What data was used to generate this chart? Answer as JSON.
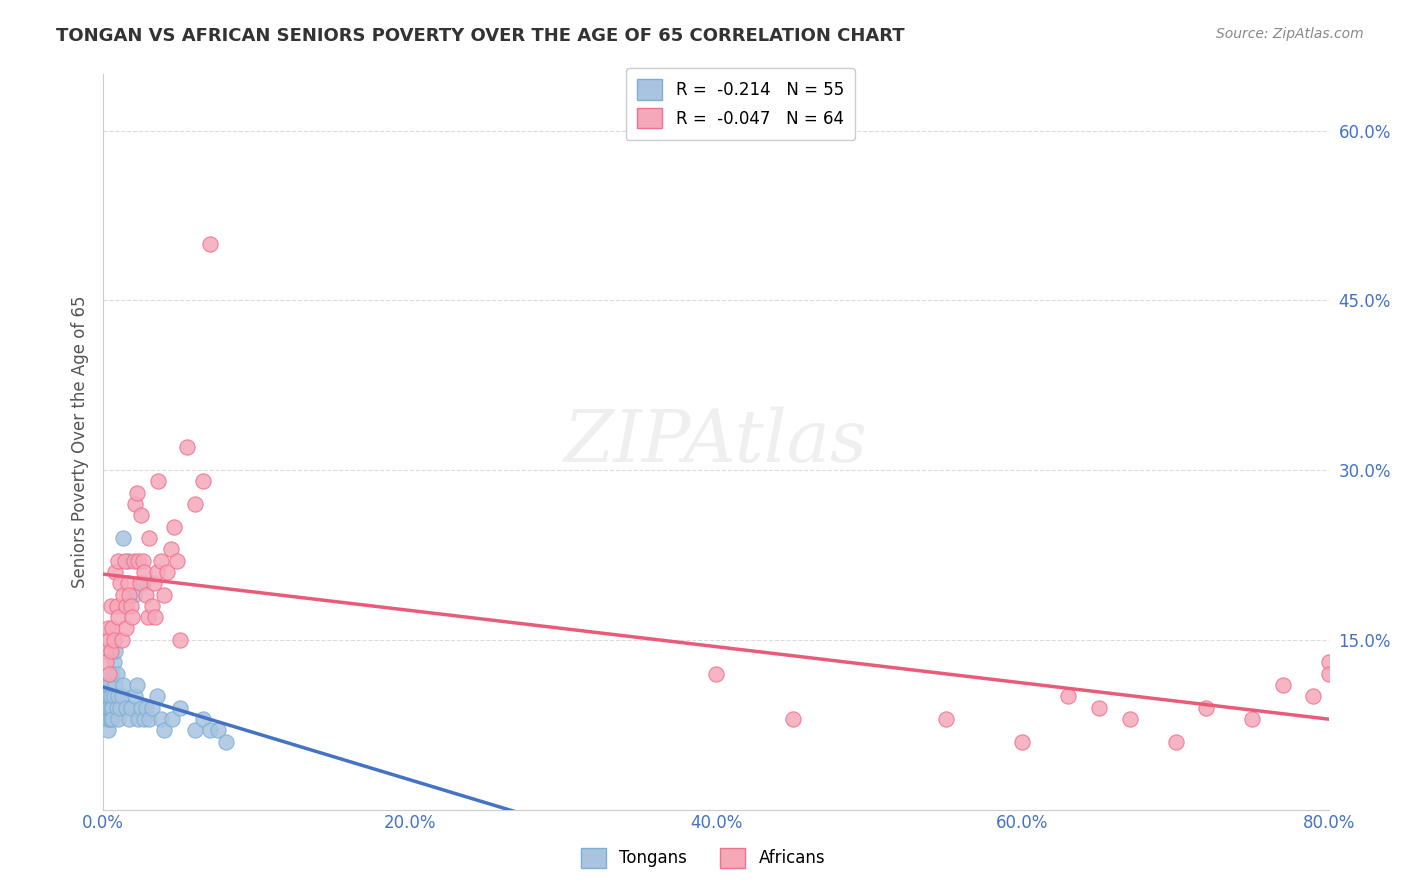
{
  "title": "TONGAN VS AFRICAN SENIORS POVERTY OVER THE AGE OF 65 CORRELATION CHART",
  "source": "Source: ZipAtlas.com",
  "ylabel": "Seniors Poverty Over the Age of 65",
  "right_yticks": [
    "15.0%",
    "30.0%",
    "45.0%",
    "60.0%"
  ],
  "right_ytick_vals": [
    0.15,
    0.3,
    0.45,
    0.6
  ],
  "legend_tongan": "R =  -0.214   N = 55",
  "legend_african": "R =  -0.047   N = 64",
  "background_color": "#ffffff",
  "plot_bg_color": "#ffffff",
  "grid_color": "#cccccc",
  "tongan_color": "#a8c4e0",
  "african_color": "#f5a8b8",
  "tongan_edge": "#7bafd4",
  "african_edge": "#f07090",
  "trend_tongan_color": "#4472c4",
  "trend_african_color": "#e85c7a",
  "right_axis_color": "#4472c4",
  "xlim": [
    0.0,
    0.8
  ],
  "ylim": [
    0.0,
    0.65
  ],
  "tongan_x": [
    0.0,
    0.001,
    0.001,
    0.002,
    0.002,
    0.002,
    0.003,
    0.003,
    0.003,
    0.004,
    0.004,
    0.004,
    0.004,
    0.005,
    0.005,
    0.005,
    0.006,
    0.006,
    0.006,
    0.007,
    0.007,
    0.008,
    0.008,
    0.009,
    0.009,
    0.01,
    0.01,
    0.011,
    0.012,
    0.013,
    0.013,
    0.015,
    0.016,
    0.017,
    0.018,
    0.02,
    0.021,
    0.022,
    0.023,
    0.025,
    0.026,
    0.027,
    0.028,
    0.03,
    0.032,
    0.035,
    0.038,
    0.04,
    0.045,
    0.05,
    0.06,
    0.065,
    0.07,
    0.075,
    0.08
  ],
  "tongan_y": [
    0.09,
    0.08,
    0.1,
    0.09,
    0.11,
    0.08,
    0.1,
    0.09,
    0.07,
    0.1,
    0.08,
    0.09,
    0.11,
    0.08,
    0.09,
    0.1,
    0.12,
    0.09,
    0.08,
    0.13,
    0.1,
    0.14,
    0.11,
    0.09,
    0.12,
    0.1,
    0.08,
    0.09,
    0.1,
    0.11,
    0.24,
    0.09,
    0.22,
    0.08,
    0.09,
    0.19,
    0.1,
    0.11,
    0.08,
    0.09,
    0.2,
    0.08,
    0.09,
    0.08,
    0.09,
    0.1,
    0.08,
    0.07,
    0.08,
    0.09,
    0.07,
    0.08,
    0.07,
    0.07,
    0.06
  ],
  "african_x": [
    0.001,
    0.002,
    0.003,
    0.004,
    0.004,
    0.005,
    0.005,
    0.006,
    0.007,
    0.008,
    0.009,
    0.01,
    0.01,
    0.011,
    0.012,
    0.013,
    0.014,
    0.015,
    0.015,
    0.016,
    0.017,
    0.018,
    0.019,
    0.02,
    0.021,
    0.022,
    0.023,
    0.024,
    0.025,
    0.026,
    0.027,
    0.028,
    0.029,
    0.03,
    0.032,
    0.033,
    0.034,
    0.035,
    0.036,
    0.038,
    0.04,
    0.042,
    0.044,
    0.046,
    0.048,
    0.05,
    0.055,
    0.06,
    0.065,
    0.07,
    0.4,
    0.45,
    0.55,
    0.6,
    0.63,
    0.65,
    0.67,
    0.7,
    0.72,
    0.75,
    0.77,
    0.79,
    0.8,
    0.8
  ],
  "african_y": [
    0.14,
    0.13,
    0.16,
    0.12,
    0.15,
    0.14,
    0.18,
    0.16,
    0.15,
    0.21,
    0.18,
    0.17,
    0.22,
    0.2,
    0.15,
    0.19,
    0.22,
    0.18,
    0.16,
    0.2,
    0.19,
    0.18,
    0.17,
    0.22,
    0.27,
    0.28,
    0.22,
    0.2,
    0.26,
    0.22,
    0.21,
    0.19,
    0.17,
    0.24,
    0.18,
    0.2,
    0.17,
    0.21,
    0.29,
    0.22,
    0.19,
    0.21,
    0.23,
    0.25,
    0.22,
    0.15,
    0.32,
    0.27,
    0.29,
    0.5,
    0.12,
    0.08,
    0.08,
    0.06,
    0.1,
    0.09,
    0.08,
    0.06,
    0.09,
    0.08,
    0.11,
    0.1,
    0.13,
    0.12
  ],
  "marker_size": 120
}
